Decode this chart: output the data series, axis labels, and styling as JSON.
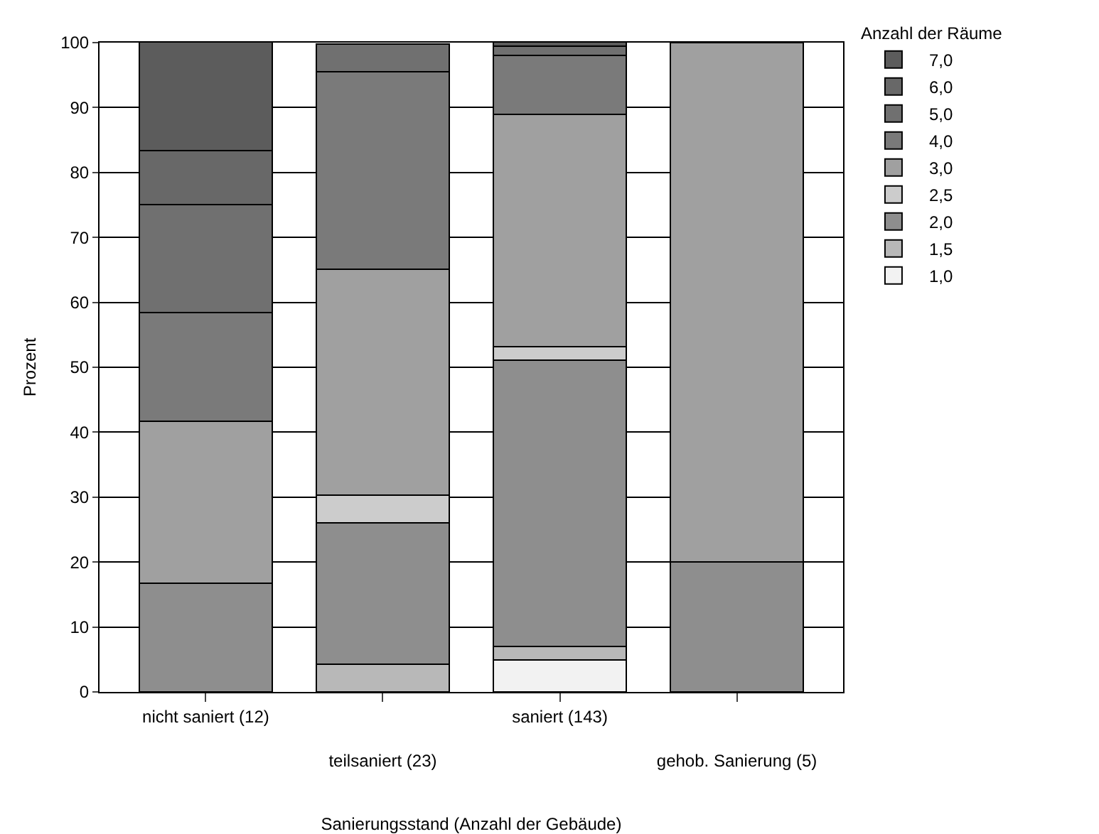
{
  "chart_data": {
    "type": "bar",
    "stacked": true,
    "xlabel": "Sanierungsstand (Anzahl der Gebäude)",
    "ylabel": "Prozent",
    "legend_title": "Anzahl der Räume",
    "legend": "right",
    "grid": "y",
    "categories": [
      "nicht saniert (12)",
      "teilsaniert (23)",
      "saniert (143)",
      "gehob. Sanierung (5)"
    ],
    "ylim": [
      0,
      100
    ],
    "yticks": [
      0,
      10,
      20,
      30,
      40,
      50,
      60,
      70,
      80,
      90,
      100
    ],
    "series": [
      {
        "name": "1,0",
        "color": "#f2f2f2",
        "values": [
          null,
          null,
          4.9,
          null
        ]
      },
      {
        "name": "1,5",
        "color": "#b8b8b8",
        "values": [
          null,
          4.3,
          2.1,
          null
        ]
      },
      {
        "name": "2,0",
        "color": "#8e8e8e",
        "values": [
          16.7,
          21.7,
          44.1,
          20
        ]
      },
      {
        "name": "2,5",
        "color": "#cccccc",
        "values": [
          null,
          4.3,
          2.1,
          null
        ]
      },
      {
        "name": "3,0",
        "color": "#a0a0a0",
        "values": [
          25,
          34.8,
          35.7,
          80
        ]
      },
      {
        "name": "4,0",
        "color": "#7a7a7a",
        "values": [
          16.7,
          30.4,
          9.1,
          null
        ]
      },
      {
        "name": "5,0",
        "color": "#707070",
        "values": [
          16.7,
          4.3,
          1.4,
          null
        ]
      },
      {
        "name": "6,0",
        "color": "#686868",
        "values": [
          8.3,
          null,
          null,
          null
        ]
      },
      {
        "name": "7,0",
        "color": "#5c5c5c",
        "values": [
          16.7,
          null,
          0.7,
          null
        ]
      }
    ]
  }
}
